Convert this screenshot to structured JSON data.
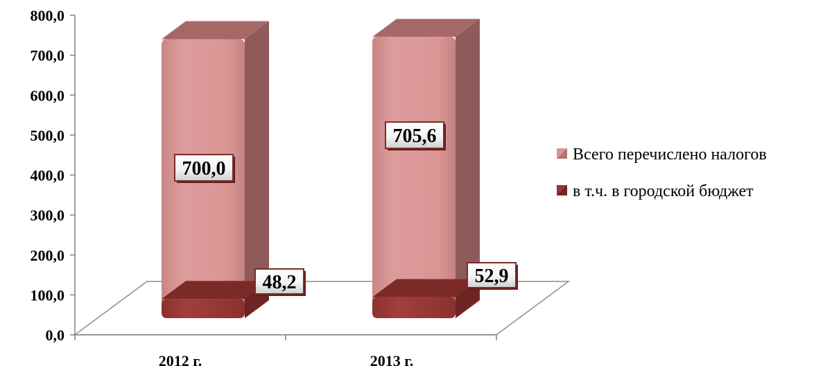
{
  "chart_data": {
    "type": "bar",
    "categories": [
      "2012 г.",
      "2013 г."
    ],
    "series": [
      {
        "name": "Всего перечислено налогов",
        "values": [
          700.0,
          705.6
        ],
        "color": "#d99594"
      },
      {
        "name": "в т.ч. в городской бюджет",
        "values": [
          48.2,
          52.9
        ],
        "color": "#953735"
      }
    ],
    "data_labels": [
      [
        "700,0",
        "705,6"
      ],
      [
        "48,2",
        "52,9"
      ]
    ],
    "y_ticks": [
      "0,0",
      "100,0",
      "200,0",
      "300,0",
      "400,0",
      "500,0",
      "600,0",
      "700,0",
      "800,0"
    ],
    "ylim": [
      0,
      800
    ],
    "title": "",
    "xlabel": "",
    "ylabel": "",
    "legend_position": "right",
    "grid": false,
    "style": "3d-bar"
  }
}
